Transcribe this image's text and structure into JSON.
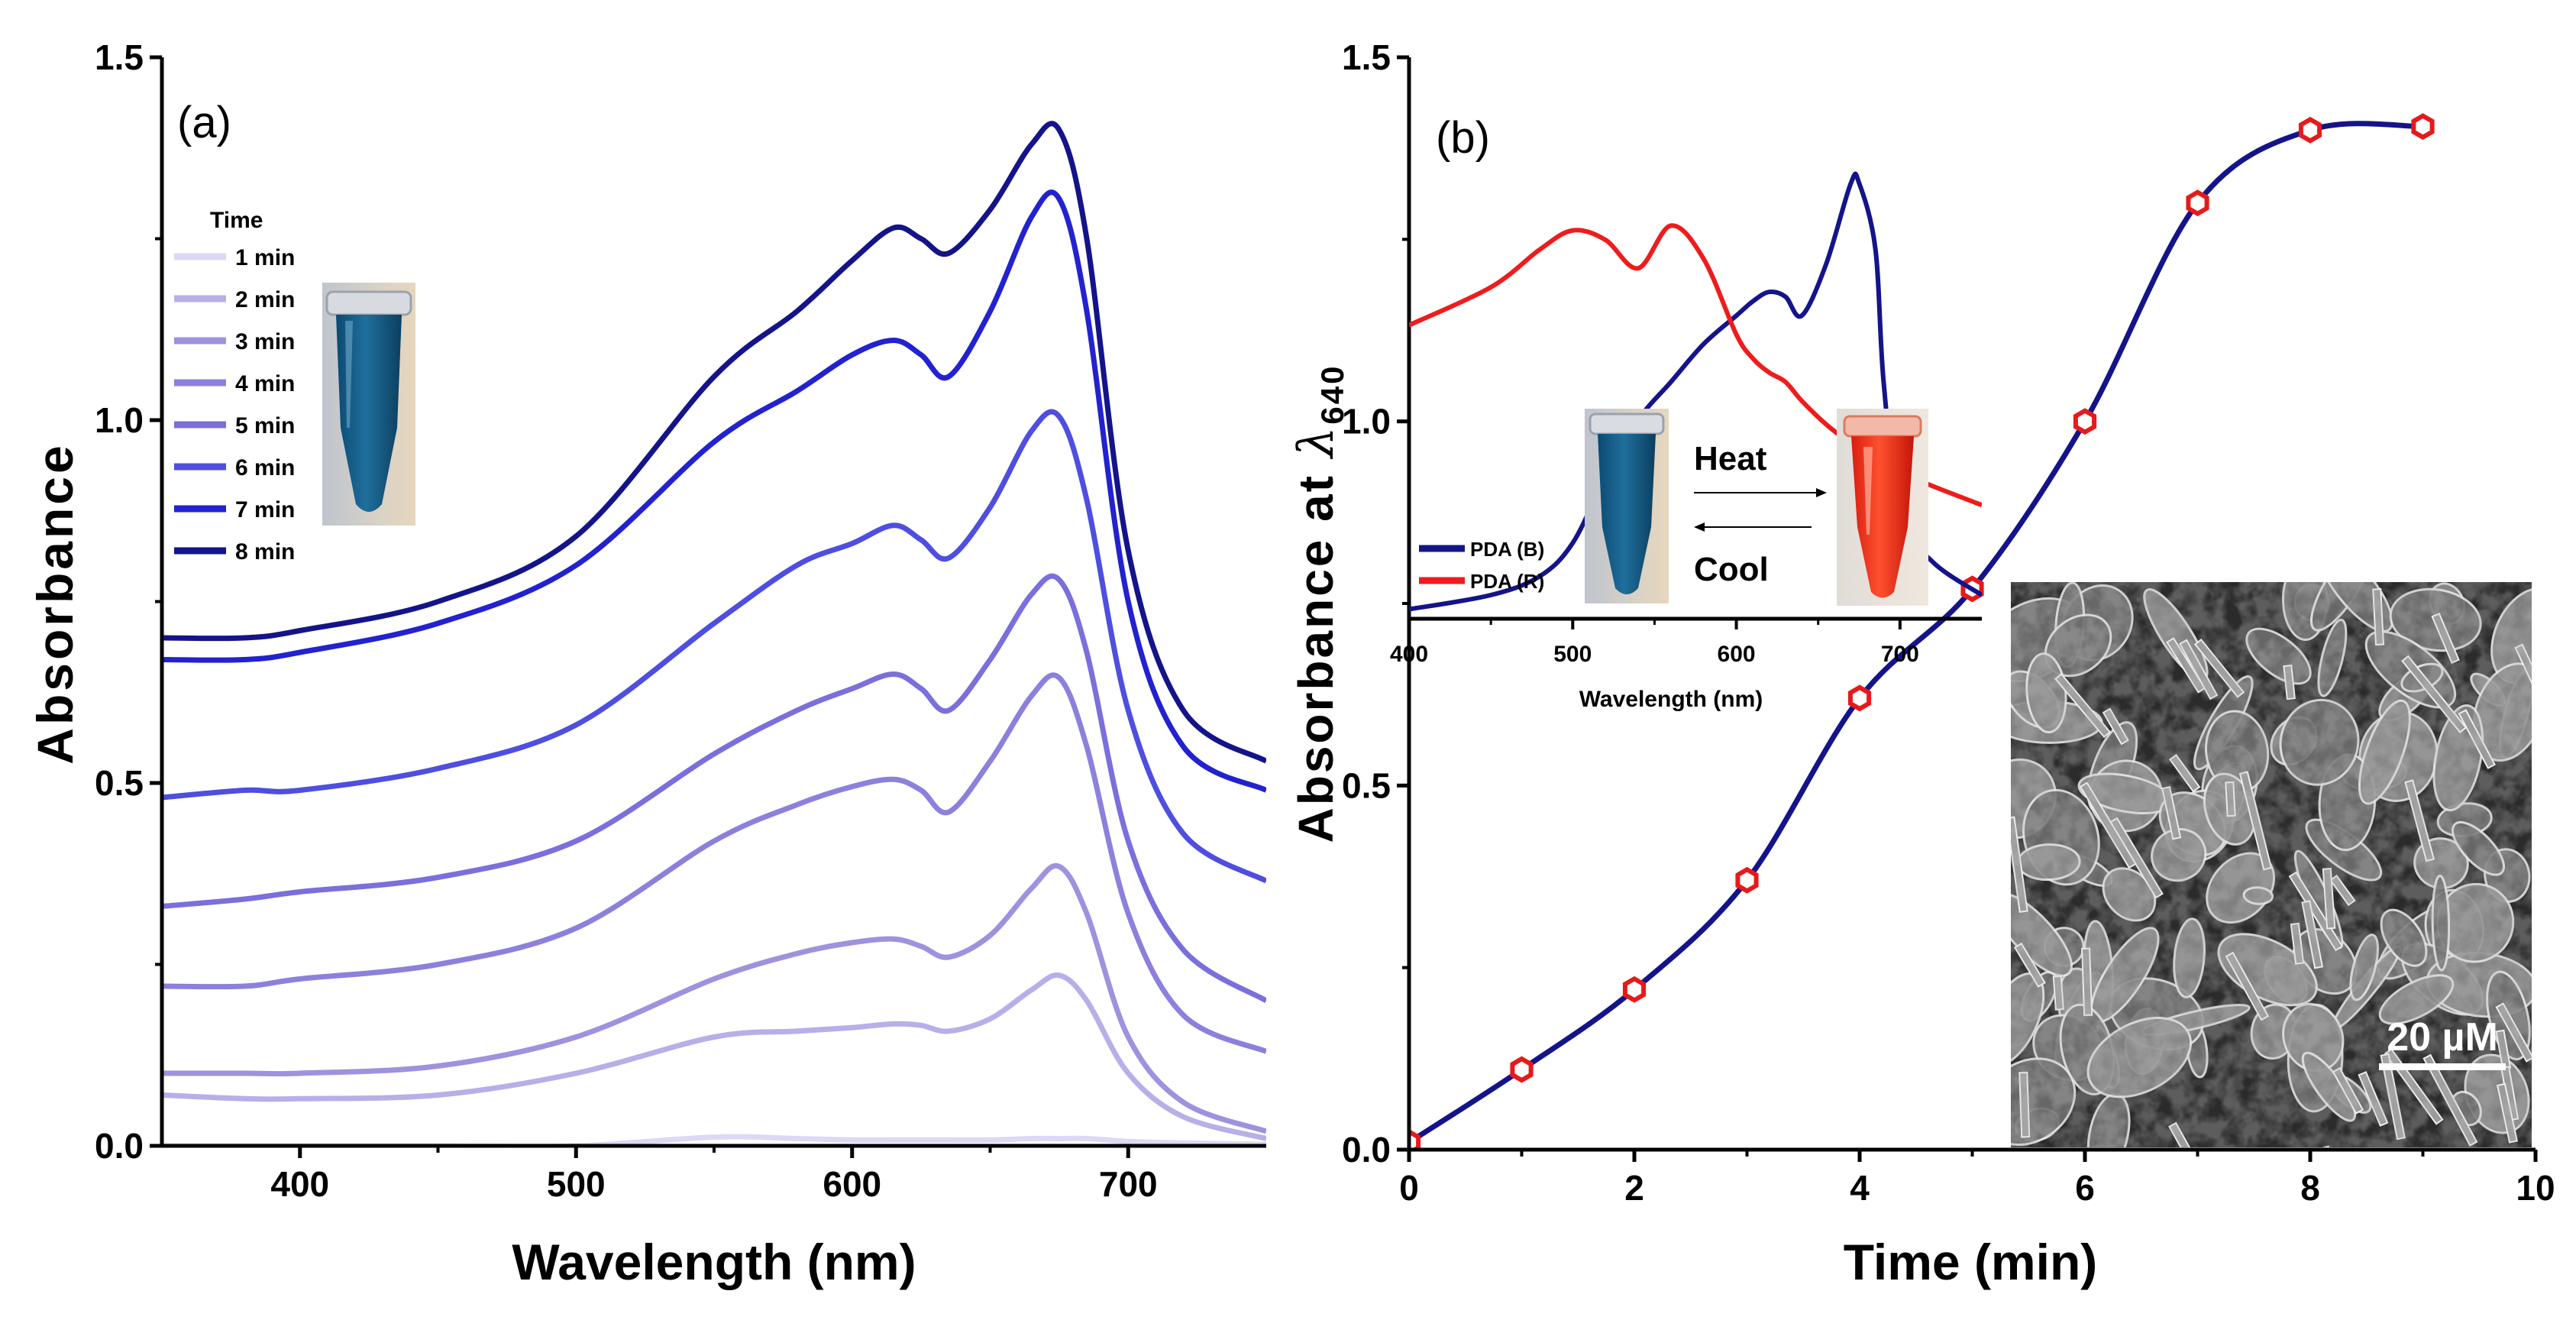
{
  "chart_data": [
    {
      "panel": "(a)",
      "type": "line",
      "xlabel": "Wavelength (nm)",
      "ylabel": "Absorbance",
      "xlim": [
        350,
        750
      ],
      "ylim": [
        0.0,
        1.5
      ],
      "xticks": [
        "400",
        "500",
        "600",
        "700"
      ],
      "yticks": [
        "0.0",
        "0.5",
        "1.0",
        "1.5"
      ],
      "legend_title": "Time",
      "legend_position": "top-left",
      "x": [
        350,
        380,
        400,
        450,
        500,
        550,
        580,
        600,
        615,
        625,
        635,
        650,
        665,
        675,
        685,
        700,
        720,
        750
      ],
      "series": [
        {
          "name": "1 min",
          "color": "#dcd8f5",
          "values": [
            0.0,
            0.0,
            0.0,
            0.0,
            0.0,
            0.012,
            0.01,
            0.008,
            0.008,
            0.008,
            0.008,
            0.008,
            0.01,
            0.01,
            0.01,
            0.006,
            0.004,
            0.002
          ]
        },
        {
          "name": "2 min",
          "color": "#b8aee8",
          "values": [
            0.07,
            0.065,
            0.065,
            0.07,
            0.1,
            0.15,
            0.158,
            0.163,
            0.168,
            0.166,
            0.158,
            0.175,
            0.215,
            0.235,
            0.2,
            0.1,
            0.04,
            0.01
          ]
        },
        {
          "name": "3 min",
          "color": "#9e92df",
          "values": [
            0.1,
            0.1,
            0.1,
            0.11,
            0.15,
            0.23,
            0.265,
            0.28,
            0.285,
            0.275,
            0.26,
            0.29,
            0.355,
            0.385,
            0.32,
            0.15,
            0.06,
            0.02
          ]
        },
        {
          "name": "4 min",
          "color": "#8c80dd",
          "values": [
            0.22,
            0.22,
            0.23,
            0.25,
            0.3,
            0.42,
            0.47,
            0.495,
            0.505,
            0.49,
            0.46,
            0.53,
            0.62,
            0.645,
            0.55,
            0.32,
            0.18,
            0.13
          ]
        },
        {
          "name": "5 min",
          "color": "#7a6fdc",
          "values": [
            0.33,
            0.34,
            0.35,
            0.37,
            0.42,
            0.54,
            0.6,
            0.63,
            0.65,
            0.63,
            0.6,
            0.67,
            0.76,
            0.78,
            0.68,
            0.42,
            0.27,
            0.2
          ]
        },
        {
          "name": "6 min",
          "color": "#4e4ee0",
          "values": [
            0.48,
            0.49,
            0.49,
            0.52,
            0.58,
            0.72,
            0.8,
            0.83,
            0.855,
            0.835,
            0.81,
            0.88,
            0.985,
            1.005,
            0.89,
            0.6,
            0.43,
            0.365
          ]
        },
        {
          "name": "7 min",
          "color": "#2222d0",
          "values": [
            0.67,
            0.67,
            0.68,
            0.72,
            0.8,
            0.97,
            1.04,
            1.09,
            1.11,
            1.09,
            1.06,
            1.15,
            1.28,
            1.305,
            1.15,
            0.75,
            0.55,
            0.49
          ]
        },
        {
          "name": "8 min",
          "color": "#14148a",
          "values": [
            0.7,
            0.7,
            0.71,
            0.75,
            0.84,
            1.06,
            1.15,
            1.22,
            1.265,
            1.25,
            1.23,
            1.29,
            1.38,
            1.4,
            1.25,
            0.82,
            0.6,
            0.53
          ]
        }
      ]
    },
    {
      "panel": "(b)",
      "type": "scatter",
      "xlabel": "Time (min)",
      "ylabel_main": "Absorbance at ",
      "ylabel_symbol": "λ",
      "ylabel_sub": "640",
      "xlim": [
        0,
        10
      ],
      "ylim": [
        0.0,
        1.5
      ],
      "xticks": [
        "0",
        "2",
        "4",
        "6",
        "8",
        "10"
      ],
      "yticks": [
        "0.0",
        "0.5",
        "1.0",
        "1.5"
      ],
      "line_color": "#14148a",
      "marker_color": "#e61a1a",
      "x": [
        0,
        1,
        2,
        3,
        4,
        5,
        6,
        7,
        8,
        9
      ],
      "values": [
        0.01,
        0.11,
        0.22,
        0.37,
        0.62,
        0.77,
        1.0,
        1.3,
        1.4,
        1.405
      ]
    },
    {
      "panel": "inset",
      "type": "line",
      "xlabel": "Wavelength (nm)",
      "xlim": [
        400,
        750
      ],
      "ylim": [
        0.0,
        1.0
      ],
      "xticks": [
        "400",
        "500",
        "600",
        "700"
      ],
      "legend_position": "bottom-left",
      "x": [
        400,
        450,
        480,
        500,
        520,
        540,
        560,
        580,
        600,
        610,
        620,
        630,
        640,
        655,
        670,
        675,
        685,
        690,
        700,
        720,
        750
      ],
      "series": [
        {
          "name": "PDA (B)",
          "color": "#14148a",
          "values": [
            0.02,
            0.05,
            0.09,
            0.16,
            0.3,
            0.42,
            0.5,
            0.58,
            0.64,
            0.67,
            0.69,
            0.68,
            0.64,
            0.75,
            0.92,
            0.92,
            0.78,
            0.5,
            0.22,
            0.12,
            0.05
          ]
        },
        {
          "name": "PDA (R)",
          "color": "#ee1c1c",
          "values": [
            0.62,
            0.7,
            0.78,
            0.82,
            0.8,
            0.74,
            0.83,
            0.76,
            0.6,
            0.55,
            0.52,
            0.5,
            0.46,
            0.41,
            0.37,
            0.36,
            0.34,
            0.33,
            0.31,
            0.28,
            0.24
          ]
        }
      ]
    }
  ],
  "annotations": {
    "heat_label": "Heat",
    "cool_label": "Cool",
    "scale_bar_label": "20 µM"
  }
}
